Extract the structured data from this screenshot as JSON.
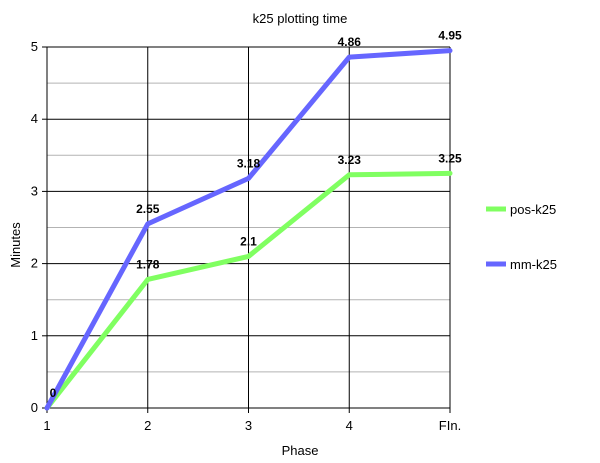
{
  "chart_data": {
    "type": "line",
    "title": "k25 plotting time",
    "xlabel": "Phase",
    "ylabel": "Minutes",
    "categories": [
      "1",
      "2",
      "3",
      "4",
      "FIn."
    ],
    "yticks": [
      "0",
      "1",
      "2",
      "3",
      "4",
      "5"
    ],
    "ylim": [
      0,
      5
    ],
    "grid": true,
    "legend_position": "right",
    "series": [
      {
        "name": "pos-k25",
        "color": "#80ff61",
        "values": [
          0,
          1.78,
          2.1,
          3.23,
          3.25
        ],
        "labels": [
          "",
          "1.78",
          "2.1",
          "3.23",
          "3.25"
        ]
      },
      {
        "name": "mm-k25",
        "color": "#6666ff",
        "values": [
          0,
          2.55,
          3.18,
          4.86,
          4.95
        ],
        "labels": [
          "0",
          "2.55",
          "3.18",
          "4.86",
          "4.95"
        ]
      }
    ]
  }
}
